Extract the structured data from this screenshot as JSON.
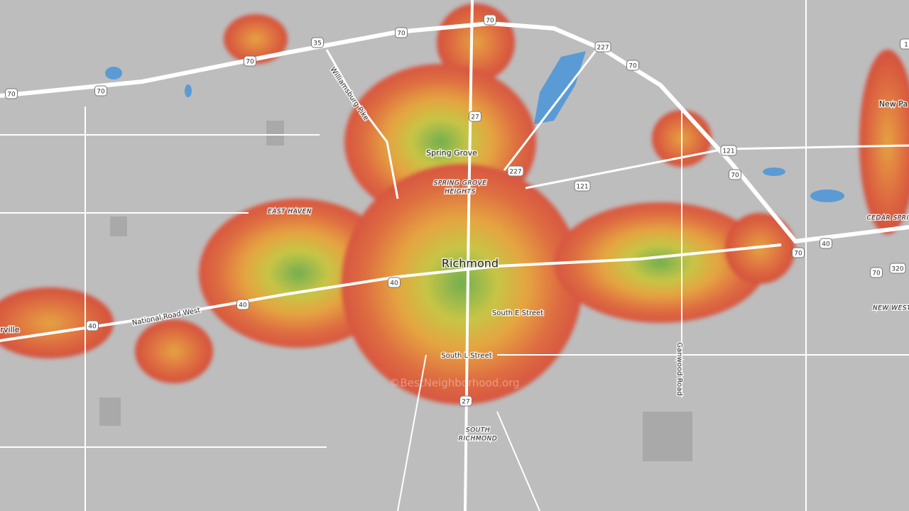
{
  "labels": {
    "city": "Richmond",
    "spring_grove": "Spring Grove",
    "spring_grove_heights": [
      "SPRING GROVE",
      "HEIGHTS"
    ],
    "east_haven": "EAST HAVEN",
    "national_road": "National Road West",
    "williamsburg_pike": "Williamsburg Pike",
    "south_e": "South E Street",
    "south_l": "South L Street",
    "south_richmond": [
      "SOUTH",
      "RICHMOND"
    ],
    "ganwood": "Ganwood Road",
    "new_paris": "New Pa",
    "cedar_springs": "CEDAR SPRI",
    "new_westville": "NEW WEST",
    "centerville": "rville"
  },
  "shields": [
    "70",
    "70",
    "70",
    "70",
    "70",
    "70",
    "70",
    "70",
    "70",
    "35",
    "227",
    "227",
    "27",
    "27",
    "121",
    "121",
    "40",
    "40",
    "40",
    "40",
    "320",
    "1"
  ],
  "watermark": "©BestNeighborhood.org"
}
